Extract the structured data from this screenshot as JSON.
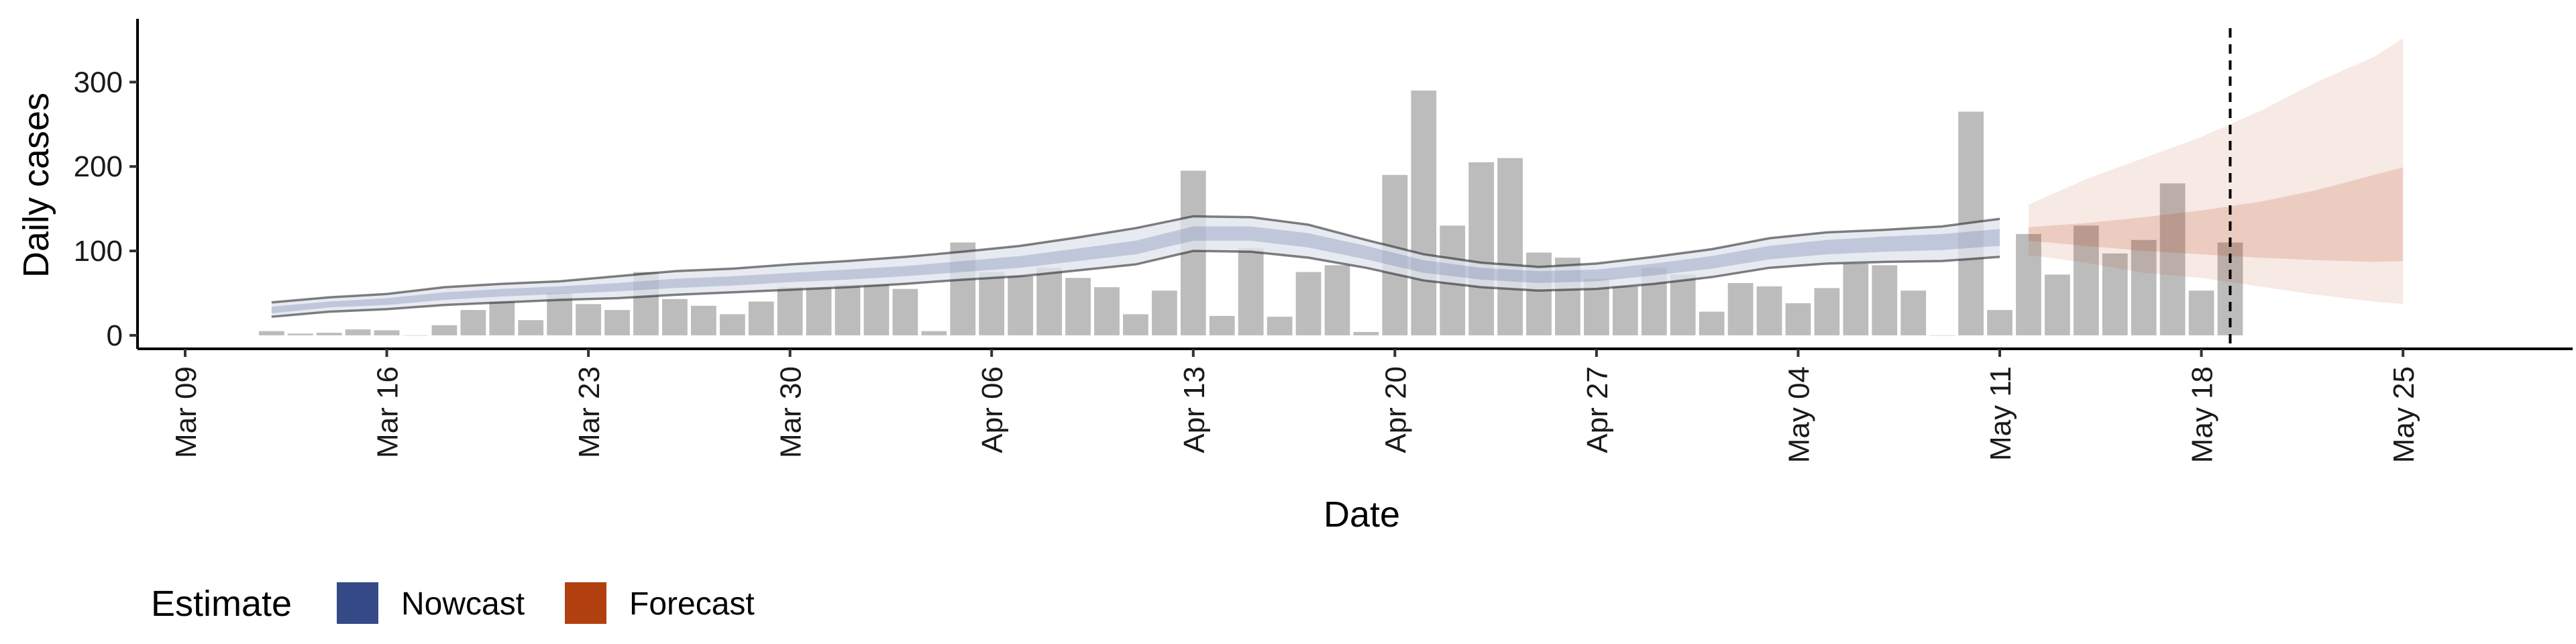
{
  "chart_data": {
    "type": "bar",
    "xlabel": "Date",
    "ylabel": "Daily cases",
    "x_axis_type": "date",
    "xlim": [
      "2020-03-09",
      "2020-05-27"
    ],
    "ylim": [
      -16,
      375
    ],
    "y_ticks": [
      0,
      100,
      200,
      300
    ],
    "x_ticks": [
      {
        "date": "2020-03-09",
        "label": "Mar 09"
      },
      {
        "date": "2020-03-16",
        "label": "Mar 16"
      },
      {
        "date": "2020-03-23",
        "label": "Mar 23"
      },
      {
        "date": "2020-03-30",
        "label": "Mar 30"
      },
      {
        "date": "2020-04-06",
        "label": "Apr 06"
      },
      {
        "date": "2020-04-13",
        "label": "Apr 13"
      },
      {
        "date": "2020-04-20",
        "label": "Apr 20"
      },
      {
        "date": "2020-04-27",
        "label": "Apr 27"
      },
      {
        "date": "2020-05-04",
        "label": "May 04"
      },
      {
        "date": "2020-05-11",
        "label": "May 11"
      },
      {
        "date": "2020-05-18",
        "label": "May 18"
      },
      {
        "date": "2020-05-25",
        "label": "May 25"
      }
    ],
    "grid": false,
    "bar_color": "#bcbcbc",
    "vline": {
      "date": "2020-05-19",
      "style": "dashed"
    },
    "cases": [
      [
        "2020-03-12",
        5
      ],
      [
        "2020-03-13",
        2
      ],
      [
        "2020-03-14",
        3
      ],
      [
        "2020-03-15",
        7
      ],
      [
        "2020-03-16",
        6
      ],
      [
        "2020-03-17",
        0
      ],
      [
        "2020-03-18",
        12
      ],
      [
        "2020-03-19",
        30
      ],
      [
        "2020-03-20",
        40
      ],
      [
        "2020-03-21",
        18
      ],
      [
        "2020-03-22",
        50
      ],
      [
        "2020-03-23",
        37
      ],
      [
        "2020-03-24",
        30
      ],
      [
        "2020-03-25",
        75
      ],
      [
        "2020-03-26",
        43
      ],
      [
        "2020-03-27",
        35
      ],
      [
        "2020-03-28",
        25
      ],
      [
        "2020-03-29",
        40
      ],
      [
        "2020-03-30",
        57
      ],
      [
        "2020-03-31",
        57
      ],
      [
        "2020-04-01",
        60
      ],
      [
        "2020-04-02",
        60
      ],
      [
        "2020-04-03",
        55
      ],
      [
        "2020-04-04",
        5
      ],
      [
        "2020-04-05",
        110
      ],
      [
        "2020-04-06",
        75
      ],
      [
        "2020-04-07",
        70
      ],
      [
        "2020-04-08",
        80
      ],
      [
        "2020-04-09",
        68
      ],
      [
        "2020-04-10",
        57
      ],
      [
        "2020-04-11",
        25
      ],
      [
        "2020-04-12",
        53
      ],
      [
        "2020-04-13",
        195
      ],
      [
        "2020-04-14",
        23
      ],
      [
        "2020-04-15",
        103
      ],
      [
        "2020-04-16",
        22
      ],
      [
        "2020-04-17",
        75
      ],
      [
        "2020-04-18",
        83
      ],
      [
        "2020-04-19",
        4
      ],
      [
        "2020-04-20",
        190
      ],
      [
        "2020-04-21",
        290
      ],
      [
        "2020-04-22",
        130
      ],
      [
        "2020-04-23",
        205
      ],
      [
        "2020-04-24",
        210
      ],
      [
        "2020-04-25",
        98
      ],
      [
        "2020-04-26",
        92
      ],
      [
        "2020-04-27",
        67
      ],
      [
        "2020-04-28",
        58
      ],
      [
        "2020-04-29",
        80
      ],
      [
        "2020-04-30",
        72
      ],
      [
        "2020-05-01",
        28
      ],
      [
        "2020-05-02",
        62
      ],
      [
        "2020-05-03",
        58
      ],
      [
        "2020-05-04",
        38
      ],
      [
        "2020-05-05",
        56
      ],
      [
        "2020-05-06",
        85
      ],
      [
        "2020-05-07",
        83
      ],
      [
        "2020-05-08",
        53
      ],
      [
        "2020-05-09",
        0
      ],
      [
        "2020-05-10",
        265
      ],
      [
        "2020-05-11",
        30
      ],
      [
        "2020-05-12",
        120
      ],
      [
        "2020-05-13",
        72
      ],
      [
        "2020-05-14",
        130
      ],
      [
        "2020-05-15",
        97
      ],
      [
        "2020-05-16",
        113
      ],
      [
        "2020-05-17",
        180
      ],
      [
        "2020-05-18",
        53
      ],
      [
        "2020-05-19",
        110
      ]
    ],
    "nowcast": {
      "color": "#3b4f8c",
      "dates": [
        "2020-03-12",
        "2020-03-14",
        "2020-03-16",
        "2020-03-18",
        "2020-03-20",
        "2020-03-22",
        "2020-03-24",
        "2020-03-26",
        "2020-03-28",
        "2020-03-30",
        "2020-04-01",
        "2020-04-03",
        "2020-04-05",
        "2020-04-07",
        "2020-04-09",
        "2020-04-11",
        "2020-04-13",
        "2020-04-15",
        "2020-04-17",
        "2020-04-19",
        "2020-04-21",
        "2020-04-23",
        "2020-04-25",
        "2020-04-27",
        "2020-04-29",
        "2020-05-01",
        "2020-05-03",
        "2020-05-05",
        "2020-05-07",
        "2020-05-09",
        "2020-05-11"
      ],
      "lower90": [
        22,
        28,
        31,
        36,
        39,
        42,
        44,
        48,
        51,
        54,
        57,
        61,
        66,
        70,
        77,
        84,
        100,
        99,
        92,
        80,
        65,
        57,
        53,
        55,
        61,
        69,
        80,
        85,
        87,
        88,
        93
      ],
      "lower50": [
        26,
        33,
        36,
        42,
        46,
        49,
        52,
        56,
        59,
        63,
        66,
        70,
        75,
        80,
        88,
        96,
        112,
        112,
        104,
        90,
        74,
        66,
        62,
        64,
        71,
        79,
        90,
        96,
        99,
        101,
        106
      ],
      "upper50": [
        34,
        40,
        44,
        51,
        55,
        58,
        62,
        67,
        70,
        74,
        78,
        82,
        88,
        94,
        103,
        112,
        129,
        129,
        121,
        106,
        89,
        80,
        76,
        78,
        85,
        94,
        106,
        113,
        117,
        120,
        126
      ],
      "upper90": [
        39,
        45,
        49,
        57,
        61,
        64,
        70,
        76,
        79,
        84,
        88,
        93,
        99,
        106,
        116,
        127,
        141,
        140,
        131,
        113,
        96,
        86,
        81,
        85,
        93,
        102,
        115,
        122,
        125,
        129,
        138
      ]
    },
    "forecast": {
      "color": "#b5380d",
      "dates": [
        "2020-05-12",
        "2020-05-14",
        "2020-05-16",
        "2020-05-18",
        "2020-05-20",
        "2020-05-22",
        "2020-05-24",
        "2020-05-25"
      ],
      "lower90": [
        95,
        86,
        74,
        68,
        58,
        48,
        40,
        37
      ],
      "lower50": [
        112,
        106,
        100,
        96,
        92,
        89,
        87,
        88
      ],
      "upper50": [
        128,
        133,
        140,
        148,
        158,
        172,
        190,
        199
      ],
      "upper90": [
        155,
        185,
        210,
        235,
        265,
        300,
        330,
        352
      ]
    },
    "legend": {
      "title": "Estimate",
      "position": "bottom-left",
      "items": [
        {
          "label": "Nowcast",
          "color": "#354a87"
        },
        {
          "label": "Forecast",
          "color": "#b2400f"
        }
      ]
    }
  }
}
